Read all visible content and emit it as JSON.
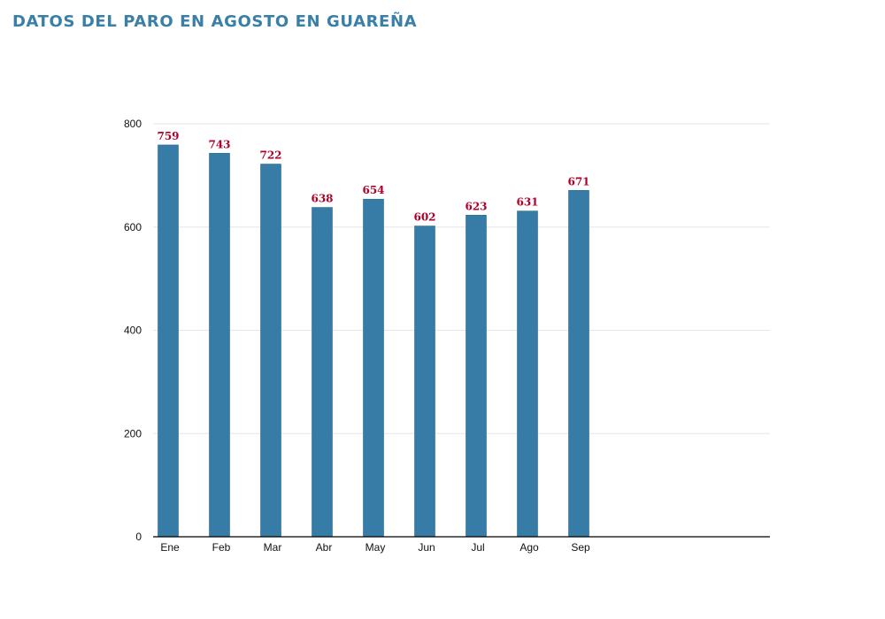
{
  "page_title": "DATOS DEL PARO EN AGOSTO EN GUAREÑA",
  "colors": {
    "title": "#3a7fa8",
    "bar": "#367ca6",
    "data_label": "#b0002a",
    "grid": "#e6e6e6",
    "axis": "#000000"
  },
  "chart_data": {
    "type": "bar",
    "title": "DATOS DEL PARO EN AGOSTO EN GUAREÑA",
    "xlabel": "",
    "ylabel": "",
    "categories": [
      "Ene",
      "Feb",
      "Mar",
      "Abr",
      "May",
      "Jun",
      "Jul",
      "Ago",
      "Sep"
    ],
    "values": [
      759,
      743,
      722,
      638,
      654,
      602,
      623,
      631,
      671
    ],
    "ylim": [
      0,
      800
    ],
    "yticks": [
      0,
      200,
      400,
      600,
      800
    ],
    "grid": true,
    "legend": "none"
  }
}
